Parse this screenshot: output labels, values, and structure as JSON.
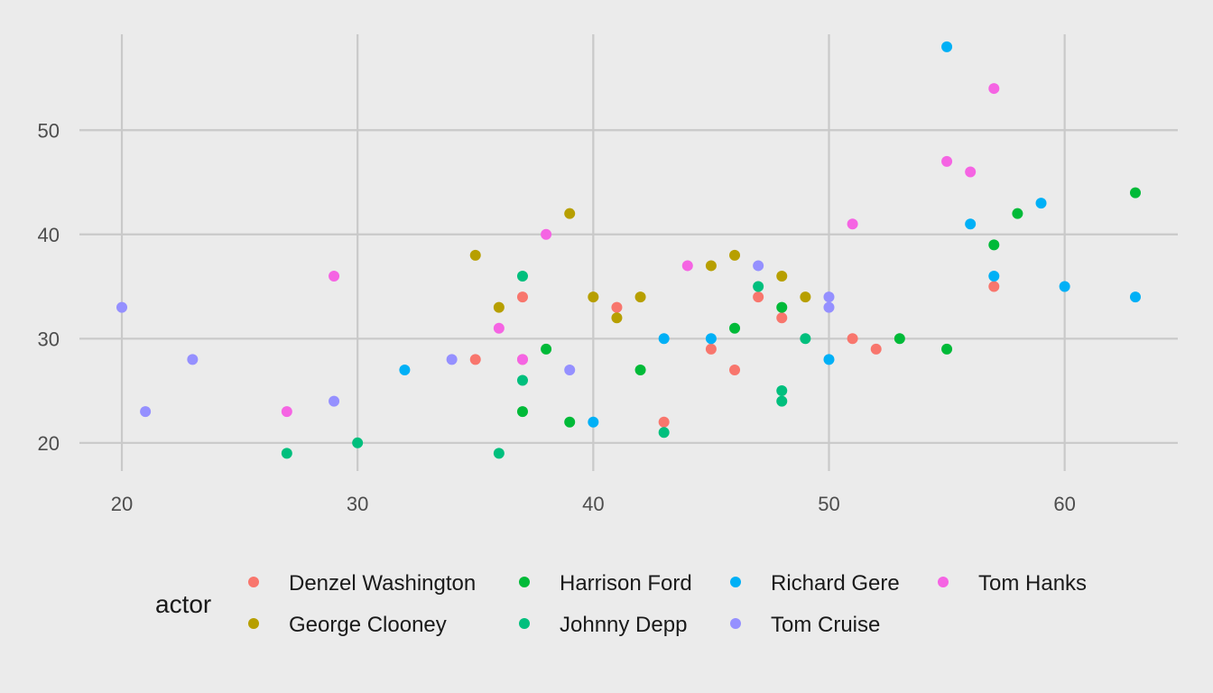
{
  "chart_data": {
    "type": "scatter",
    "title": "",
    "xlabel": "",
    "ylabel": "",
    "xlim": [
      18.2,
      64.8
    ],
    "ylim": [
      17.3,
      59.2
    ],
    "x_ticks": [
      20,
      30,
      40,
      50,
      60
    ],
    "y_ticks": [
      20,
      30,
      40,
      50
    ],
    "grid": true,
    "legend_title": "actor",
    "legend_position": "bottom",
    "series": [
      {
        "name": "Denzel Washington",
        "color": "#F8766D",
        "points": [
          [
            35,
            28
          ],
          [
            37,
            34
          ],
          [
            37,
            28
          ],
          [
            41,
            33
          ],
          [
            43,
            22
          ],
          [
            45,
            29
          ],
          [
            46,
            27
          ],
          [
            47,
            34
          ],
          [
            48,
            32
          ],
          [
            51,
            30
          ],
          [
            52,
            29
          ],
          [
            57,
            35
          ]
        ]
      },
      {
        "name": "George Clooney",
        "color": "#B79F00",
        "points": [
          [
            35,
            38
          ],
          [
            36,
            33
          ],
          [
            39,
            42
          ],
          [
            40,
            34
          ],
          [
            41,
            32
          ],
          [
            42,
            34
          ],
          [
            45,
            37
          ],
          [
            46,
            38
          ],
          [
            48,
            36
          ],
          [
            49,
            34
          ]
        ]
      },
      {
        "name": "Harrison Ford",
        "color": "#00BA38",
        "points": [
          [
            37,
            23
          ],
          [
            38,
            29
          ],
          [
            39,
            22
          ],
          [
            42,
            27
          ],
          [
            46,
            31
          ],
          [
            48,
            33
          ],
          [
            53,
            30
          ],
          [
            55,
            29
          ],
          [
            57,
            39
          ],
          [
            58,
            42
          ],
          [
            63,
            44
          ]
        ]
      },
      {
        "name": "Johnny Depp",
        "color": "#00BF7D",
        "points": [
          [
            27,
            19
          ],
          [
            30,
            20
          ],
          [
            36,
            19
          ],
          [
            37,
            36
          ],
          [
            37,
            26
          ],
          [
            43,
            21
          ],
          [
            47,
            35
          ],
          [
            48,
            25
          ],
          [
            48,
            24
          ],
          [
            49,
            30
          ]
        ]
      },
      {
        "name": "Richard Gere",
        "color": "#00B0F6",
        "points": [
          [
            32,
            27
          ],
          [
            40,
            22
          ],
          [
            43,
            30
          ],
          [
            45,
            30
          ],
          [
            50,
            28
          ],
          [
            55,
            58
          ],
          [
            56,
            41
          ],
          [
            57,
            36
          ],
          [
            59,
            43
          ],
          [
            60,
            35
          ],
          [
            63,
            34
          ]
        ]
      },
      {
        "name": "Tom Cruise",
        "color": "#9590FF",
        "points": [
          [
            20,
            33
          ],
          [
            21,
            23
          ],
          [
            23,
            28
          ],
          [
            29,
            24
          ],
          [
            34,
            28
          ],
          [
            39,
            27
          ],
          [
            47,
            37
          ],
          [
            50,
            34
          ],
          [
            50,
            33
          ]
        ]
      },
      {
        "name": "Tom Hanks",
        "color": "#F564E3",
        "points": [
          [
            27,
            23
          ],
          [
            29,
            36
          ],
          [
            36,
            31
          ],
          [
            37,
            28
          ],
          [
            38,
            40
          ],
          [
            44,
            37
          ],
          [
            51,
            41
          ],
          [
            55,
            47
          ],
          [
            56,
            46
          ],
          [
            57,
            54
          ]
        ]
      }
    ]
  }
}
